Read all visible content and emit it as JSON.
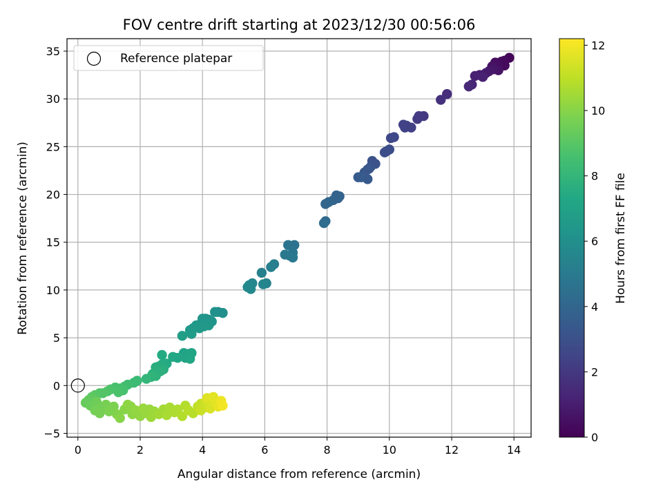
{
  "chart_data": {
    "type": "scatter",
    "title": "FOV centre drift starting at 2023/12/30 00:56:06",
    "xlabel": "Angular distance from reference (arcmin)",
    "ylabel": "Rotation from reference (arcmin)",
    "xlim": [
      -0.35,
      14.55
    ],
    "ylim": [
      -5.4,
      36.3
    ],
    "xticks": [
      "0",
      "2",
      "4",
      "6",
      "8",
      "10",
      "12",
      "14"
    ],
    "yticks": [
      "−5",
      "0",
      "5",
      "10",
      "15",
      "20",
      "25",
      "30",
      "35"
    ],
    "grid": true,
    "legend": {
      "placement": "top-left",
      "entries": [
        "Reference platepar"
      ]
    },
    "reference_point": {
      "x": 0,
      "y": 0,
      "label": "Reference platepar"
    },
    "colorbar": {
      "label": "Hours from first FF file",
      "colormap": "viridis",
      "range": [
        0,
        12.2
      ],
      "ticks": [
        "0",
        "2",
        "4",
        "6",
        "8",
        "10",
        "12"
      ]
    },
    "points": [
      {
        "x": 13.85,
        "y": 34.3,
        "c": 0.1
      },
      {
        "x": 13.7,
        "y": 34.0,
        "c": 0.2
      },
      {
        "x": 13.6,
        "y": 33.9,
        "c": 0.3
      },
      {
        "x": 13.5,
        "y": 33.6,
        "c": 0.4
      },
      {
        "x": 13.4,
        "y": 33.8,
        "c": 0.5
      },
      {
        "x": 13.3,
        "y": 33.4,
        "c": 0.6
      },
      {
        "x": 13.5,
        "y": 33.0,
        "c": 0.6
      },
      {
        "x": 13.35,
        "y": 33.1,
        "c": 0.7
      },
      {
        "x": 13.7,
        "y": 33.5,
        "c": 0.3
      },
      {
        "x": 13.1,
        "y": 32.7,
        "c": 0.9
      },
      {
        "x": 12.9,
        "y": 32.5,
        "c": 1.0
      },
      {
        "x": 13.0,
        "y": 32.3,
        "c": 1.1
      },
      {
        "x": 12.75,
        "y": 32.4,
        "c": 1.1
      },
      {
        "x": 13.2,
        "y": 32.9,
        "c": 0.8
      },
      {
        "x": 12.65,
        "y": 31.5,
        "c": 1.3
      },
      {
        "x": 12.55,
        "y": 31.3,
        "c": 1.4
      },
      {
        "x": 11.85,
        "y": 30.5,
        "c": 1.6
      },
      {
        "x": 11.65,
        "y": 29.9,
        "c": 1.7
      },
      {
        "x": 11.1,
        "y": 28.2,
        "c": 2.0
      },
      {
        "x": 10.95,
        "y": 28.2,
        "c": 2.1
      },
      {
        "x": 10.9,
        "y": 27.9,
        "c": 2.1
      },
      {
        "x": 10.7,
        "y": 27.0,
        "c": 2.3
      },
      {
        "x": 10.55,
        "y": 27.2,
        "c": 2.3
      },
      {
        "x": 10.5,
        "y": 27.0,
        "c": 2.4
      },
      {
        "x": 10.45,
        "y": 27.3,
        "c": 2.4
      },
      {
        "x": 10.15,
        "y": 26.0,
        "c": 2.6
      },
      {
        "x": 10.05,
        "y": 25.9,
        "c": 2.6
      },
      {
        "x": 10.0,
        "y": 24.7,
        "c": 2.8
      },
      {
        "x": 9.9,
        "y": 24.5,
        "c": 2.9
      },
      {
        "x": 9.85,
        "y": 24.4,
        "c": 2.9
      },
      {
        "x": 9.55,
        "y": 23.2,
        "c": 3.1
      },
      {
        "x": 9.45,
        "y": 23.5,
        "c": 3.1
      },
      {
        "x": 9.4,
        "y": 22.9,
        "c": 3.2
      },
      {
        "x": 9.3,
        "y": 22.6,
        "c": 3.3
      },
      {
        "x": 9.2,
        "y": 22.3,
        "c": 3.3
      },
      {
        "x": 9.35,
        "y": 22.7,
        "c": 3.2
      },
      {
        "x": 9.1,
        "y": 21.8,
        "c": 3.5
      },
      {
        "x": 9.0,
        "y": 21.8,
        "c": 3.5
      },
      {
        "x": 9.3,
        "y": 21.6,
        "c": 3.4
      },
      {
        "x": 8.4,
        "y": 19.8,
        "c": 3.8
      },
      {
        "x": 8.3,
        "y": 19.9,
        "c": 3.8
      },
      {
        "x": 8.35,
        "y": 19.6,
        "c": 3.9
      },
      {
        "x": 8.2,
        "y": 19.4,
        "c": 3.9
      },
      {
        "x": 8.05,
        "y": 19.2,
        "c": 4.0
      },
      {
        "x": 7.95,
        "y": 19.0,
        "c": 4.0
      },
      {
        "x": 7.95,
        "y": 17.2,
        "c": 4.2
      },
      {
        "x": 7.9,
        "y": 17.0,
        "c": 4.3
      },
      {
        "x": 6.95,
        "y": 14.7,
        "c": 4.6
      },
      {
        "x": 6.85,
        "y": 14.6,
        "c": 4.6
      },
      {
        "x": 6.75,
        "y": 14.7,
        "c": 4.7
      },
      {
        "x": 6.9,
        "y": 13.9,
        "c": 4.8
      },
      {
        "x": 6.8,
        "y": 13.6,
        "c": 4.8
      },
      {
        "x": 6.9,
        "y": 13.4,
        "c": 4.9
      },
      {
        "x": 6.65,
        "y": 13.7,
        "c": 4.9
      },
      {
        "x": 6.3,
        "y": 12.7,
        "c": 5.1
      },
      {
        "x": 6.2,
        "y": 12.4,
        "c": 5.2
      },
      {
        "x": 5.9,
        "y": 11.8,
        "c": 5.3
      },
      {
        "x": 6.05,
        "y": 10.7,
        "c": 5.4
      },
      {
        "x": 5.95,
        "y": 10.6,
        "c": 5.5
      },
      {
        "x": 5.6,
        "y": 10.7,
        "c": 5.6
      },
      {
        "x": 5.5,
        "y": 10.5,
        "c": 5.6
      },
      {
        "x": 5.45,
        "y": 10.3,
        "c": 5.7
      },
      {
        "x": 5.55,
        "y": 10.1,
        "c": 5.7
      },
      {
        "x": 4.65,
        "y": 7.6,
        "c": 6.0
      },
      {
        "x": 4.5,
        "y": 7.7,
        "c": 6.0
      },
      {
        "x": 4.4,
        "y": 7.7,
        "c": 6.1
      },
      {
        "x": 4.1,
        "y": 7.0,
        "c": 6.2
      },
      {
        "x": 4.2,
        "y": 6.9,
        "c": 6.2
      },
      {
        "x": 4.0,
        "y": 7.0,
        "c": 6.3
      },
      {
        "x": 4.3,
        "y": 6.7,
        "c": 6.3
      },
      {
        "x": 3.95,
        "y": 6.5,
        "c": 6.4
      },
      {
        "x": 4.2,
        "y": 6.3,
        "c": 6.4
      },
      {
        "x": 4.05,
        "y": 6.2,
        "c": 6.5
      },
      {
        "x": 3.9,
        "y": 6.0,
        "c": 6.5
      },
      {
        "x": 3.8,
        "y": 6.3,
        "c": 6.5
      },
      {
        "x": 3.7,
        "y": 6.0,
        "c": 6.6
      },
      {
        "x": 3.6,
        "y": 5.8,
        "c": 6.6
      },
      {
        "x": 3.65,
        "y": 5.4,
        "c": 6.7
      },
      {
        "x": 3.35,
        "y": 5.2,
        "c": 6.8
      },
      {
        "x": 3.4,
        "y": 3.4,
        "c": 7.0
      },
      {
        "x": 3.55,
        "y": 3.3,
        "c": 7.0
      },
      {
        "x": 3.65,
        "y": 3.4,
        "c": 7.1
      },
      {
        "x": 3.45,
        "y": 2.9,
        "c": 7.1
      },
      {
        "x": 3.6,
        "y": 2.8,
        "c": 7.2
      },
      {
        "x": 3.2,
        "y": 2.9,
        "c": 7.2
      },
      {
        "x": 3.05,
        "y": 3.0,
        "c": 7.3
      },
      {
        "x": 2.85,
        "y": 2.3,
        "c": 7.4
      },
      {
        "x": 2.7,
        "y": 2.2,
        "c": 7.5
      },
      {
        "x": 2.7,
        "y": 3.2,
        "c": 7.4
      },
      {
        "x": 2.6,
        "y": 2.0,
        "c": 7.5
      },
      {
        "x": 2.5,
        "y": 1.9,
        "c": 7.6
      },
      {
        "x": 2.75,
        "y": 1.7,
        "c": 7.6
      },
      {
        "x": 2.65,
        "y": 1.5,
        "c": 7.7
      },
      {
        "x": 2.55,
        "y": 1.3,
        "c": 7.7
      },
      {
        "x": 2.4,
        "y": 1.2,
        "c": 7.8
      },
      {
        "x": 2.35,
        "y": 0.9,
        "c": 7.9
      },
      {
        "x": 2.2,
        "y": 0.7,
        "c": 8.0
      },
      {
        "x": 2.5,
        "y": 1.0,
        "c": 7.8
      },
      {
        "x": 1.9,
        "y": 0.5,
        "c": 8.2
      },
      {
        "x": 1.8,
        "y": 0.3,
        "c": 8.3
      },
      {
        "x": 1.6,
        "y": 0.1,
        "c": 8.4
      },
      {
        "x": 1.5,
        "y": -0.1,
        "c": 8.5
      },
      {
        "x": 1.35,
        "y": -0.3,
        "c": 8.6
      },
      {
        "x": 1.2,
        "y": -0.2,
        "c": 8.6
      },
      {
        "x": 1.05,
        "y": -0.4,
        "c": 8.7
      },
      {
        "x": 0.95,
        "y": -0.6,
        "c": 8.8
      },
      {
        "x": 0.8,
        "y": -0.8,
        "c": 8.9
      },
      {
        "x": 0.7,
        "y": -0.8,
        "c": 8.9
      },
      {
        "x": 0.55,
        "y": -1.0,
        "c": 9.0
      },
      {
        "x": 0.45,
        "y": -1.2,
        "c": 9.1
      },
      {
        "x": 1.3,
        "y": -0.7,
        "c": 8.7
      },
      {
        "x": 1.45,
        "y": -0.5,
        "c": 8.6
      },
      {
        "x": 0.35,
        "y": -1.5,
        "c": 9.2
      },
      {
        "x": 0.25,
        "y": -1.8,
        "c": 9.3
      },
      {
        "x": 0.4,
        "y": -2.1,
        "c": 9.4
      },
      {
        "x": 0.6,
        "y": -1.7,
        "c": 9.5
      },
      {
        "x": 0.75,
        "y": -2.3,
        "c": 9.6
      },
      {
        "x": 0.55,
        "y": -2.6,
        "c": 9.6
      },
      {
        "x": 0.7,
        "y": -2.9,
        "c": 9.7
      },
      {
        "x": 0.9,
        "y": -2.0,
        "c": 9.7
      },
      {
        "x": 1.0,
        "y": -2.7,
        "c": 9.8
      },
      {
        "x": 1.15,
        "y": -2.2,
        "c": 9.8
      },
      {
        "x": 1.25,
        "y": -3.0,
        "c": 9.9
      },
      {
        "x": 1.35,
        "y": -3.4,
        "c": 10.0
      },
      {
        "x": 1.5,
        "y": -2.5,
        "c": 10.0
      },
      {
        "x": 1.6,
        "y": -2.0,
        "c": 10.1
      },
      {
        "x": 1.75,
        "y": -3.0,
        "c": 10.1
      },
      {
        "x": 1.85,
        "y": -2.6,
        "c": 10.2
      },
      {
        "x": 2.0,
        "y": -3.2,
        "c": 10.2
      },
      {
        "x": 2.1,
        "y": -2.4,
        "c": 10.3
      },
      {
        "x": 2.2,
        "y": -2.9,
        "c": 10.3
      },
      {
        "x": 2.35,
        "y": -3.3,
        "c": 10.4
      },
      {
        "x": 2.45,
        "y": -2.7,
        "c": 10.4
      },
      {
        "x": 2.6,
        "y": -3.0,
        "c": 10.5
      },
      {
        "x": 2.75,
        "y": -2.5,
        "c": 10.5
      },
      {
        "x": 2.85,
        "y": -3.1,
        "c": 10.6
      },
      {
        "x": 2.95,
        "y": -2.3,
        "c": 10.6
      },
      {
        "x": 3.1,
        "y": -2.8,
        "c": 10.7
      },
      {
        "x": 3.2,
        "y": -2.5,
        "c": 10.7
      },
      {
        "x": 3.35,
        "y": -3.2,
        "c": 10.8
      },
      {
        "x": 3.45,
        "y": -2.1,
        "c": 10.8
      },
      {
        "x": 3.55,
        "y": -2.6,
        "c": 10.9
      },
      {
        "x": 3.7,
        "y": -2.9,
        "c": 10.9
      },
      {
        "x": 1.7,
        "y": -2.2,
        "c": 10.1
      },
      {
        "x": 2.3,
        "y": -2.5,
        "c": 10.3
      },
      {
        "x": 3.85,
        "y": -2.2,
        "c": 11.0
      },
      {
        "x": 3.95,
        "y": -1.9,
        "c": 11.1
      },
      {
        "x": 4.05,
        "y": -2.3,
        "c": 11.2
      },
      {
        "x": 4.1,
        "y": -1.7,
        "c": 11.3
      },
      {
        "x": 4.2,
        "y": -2.0,
        "c": 11.4
      },
      {
        "x": 4.3,
        "y": -1.5,
        "c": 11.5
      },
      {
        "x": 4.25,
        "y": -2.4,
        "c": 11.5
      },
      {
        "x": 4.4,
        "y": -1.8,
        "c": 11.6
      },
      {
        "x": 4.5,
        "y": -2.2,
        "c": 11.8
      },
      {
        "x": 4.6,
        "y": -1.6,
        "c": 11.9
      },
      {
        "x": 4.65,
        "y": -2.1,
        "c": 12.0
      },
      {
        "x": 4.35,
        "y": -1.2,
        "c": 11.7
      },
      {
        "x": 4.15,
        "y": -1.3,
        "c": 11.6
      },
      {
        "x": 3.95,
        "y": -2.6,
        "c": 11.2
      }
    ]
  }
}
